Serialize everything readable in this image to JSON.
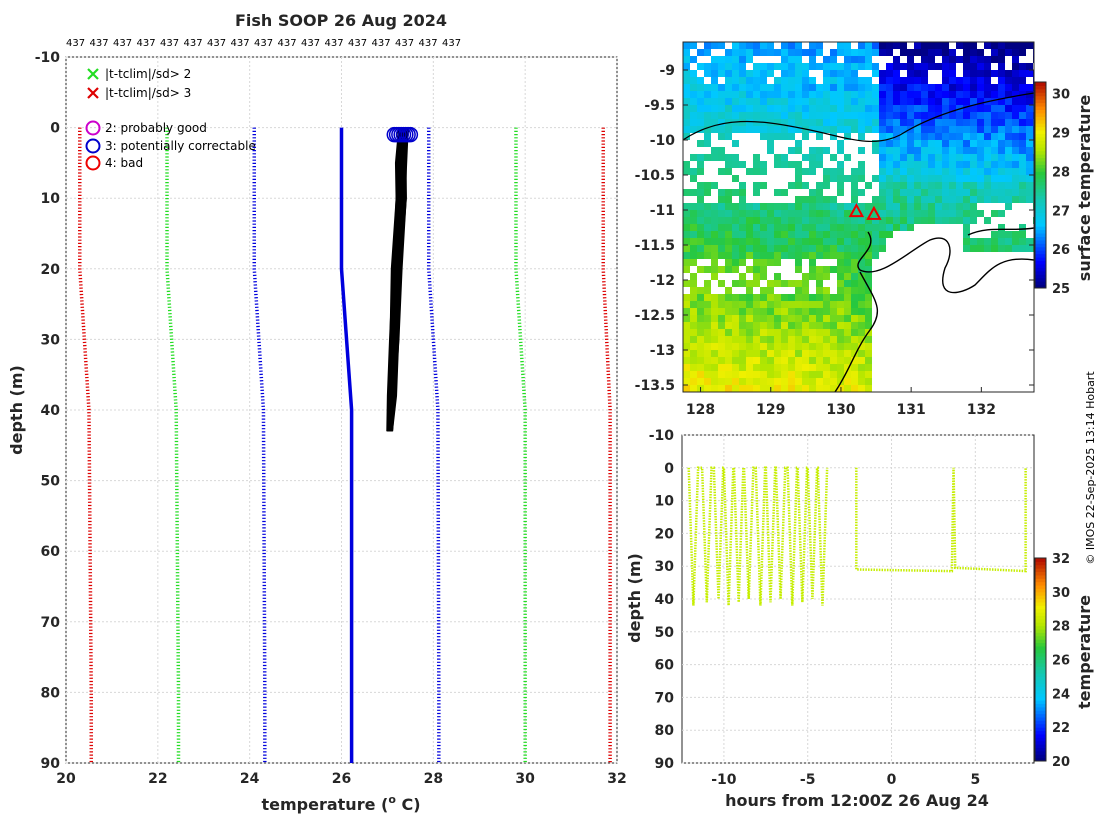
{
  "colors": {
    "clim2": "#22dd22",
    "clim3": "#dd0000",
    "flag2": "#cc00cc",
    "flag3": "#0000cc",
    "flag4": "#ee0000",
    "profile": "#000000",
    "mean": "#0000dd",
    "track": "#c6ee00",
    "coast": "#000000",
    "marker": "#ee0000"
  },
  "copyright": "© IMOS 22-Sep-2025 13:14 Hobart",
  "chart_data": [
    {
      "id": "profile",
      "type": "line",
      "title": "Fish SOOP 26 Aug 2024",
      "top_labels": [
        "437",
        "437",
        "437",
        "437",
        "437",
        "437",
        "437",
        "437",
        "437",
        "437",
        "437",
        "437",
        "437",
        "437",
        "437",
        "437",
        "437"
      ],
      "xlabel": "temperature (°C)",
      "xlabel_parts": [
        "temperature (",
        "o",
        " C)"
      ],
      "ylabel": "depth (m)",
      "xlim": [
        20,
        32
      ],
      "ylim": [
        -10,
        90
      ],
      "xticks": [
        20,
        22,
        24,
        26,
        28,
        30,
        32
      ],
      "yticks": [
        -10,
        0,
        10,
        20,
        30,
        40,
        50,
        60,
        70,
        80,
        90
      ],
      "legend": [
        {
          "marker": "x",
          "colorKey": "clim2",
          "label": "|t-tclim|/sd> 2"
        },
        {
          "marker": "x",
          "colorKey": "clim3",
          "label": "|t-tclim|/sd> 3"
        },
        {
          "marker": "o",
          "colorKey": "flag2",
          "label": "2: probably good"
        },
        {
          "marker": "o",
          "colorKey": "flag3",
          "label": "3: potentially correctable"
        },
        {
          "marker": "o",
          "colorKey": "flag4",
          "label": "4: bad"
        }
      ],
      "series": [
        {
          "name": "clim -3sd",
          "colorKey": "clim3",
          "style": "dotted",
          "depth": [
            0,
            20,
            40,
            80,
            90
          ],
          "temp": [
            20.3,
            20.3,
            20.5,
            20.55,
            20.55
          ]
        },
        {
          "name": "clim -2sd",
          "colorKey": "clim2",
          "style": "dotted",
          "depth": [
            0,
            20,
            40,
            80,
            90
          ],
          "temp": [
            22.2,
            22.2,
            22.4,
            22.45,
            22.45
          ]
        },
        {
          "name": "clim -1sd",
          "colorKey": "mean",
          "style": "dotted",
          "depth": [
            0,
            20,
            40,
            80,
            90
          ],
          "temp": [
            24.1,
            24.1,
            24.3,
            24.33,
            24.33
          ]
        },
        {
          "name": "clim mean",
          "colorKey": "mean",
          "style": "solid",
          "depth": [
            0,
            20,
            40,
            80,
            90
          ],
          "temp": [
            26.0,
            26.0,
            26.22,
            26.22,
            26.22
          ]
        },
        {
          "name": "clim +1sd",
          "colorKey": "mean",
          "style": "dotted",
          "depth": [
            0,
            20,
            40,
            80,
            90
          ],
          "temp": [
            27.9,
            27.9,
            28.1,
            28.12,
            28.12
          ]
        },
        {
          "name": "clim +2sd",
          "colorKey": "clim2",
          "style": "dotted",
          "depth": [
            0,
            20,
            40,
            80,
            90
          ],
          "temp": [
            29.8,
            29.8,
            30.0,
            30.0,
            30.0
          ]
        },
        {
          "name": "clim +3sd",
          "colorKey": "clim3",
          "style": "dotted",
          "depth": [
            0,
            20,
            40,
            80,
            90
          ],
          "temp": [
            31.7,
            31.7,
            31.85,
            31.85,
            31.85
          ]
        }
      ],
      "profiles": {
        "count": 37,
        "surface_temp_range": [
          27.2,
          27.5
        ],
        "points": [
          [
            0,
            27.35
          ],
          [
            5,
            27.3
          ],
          [
            10,
            27.3
          ],
          [
            20,
            27.2
          ],
          [
            30,
            27.15
          ],
          [
            38,
            27.1
          ],
          [
            43,
            27.05
          ]
        ],
        "spread": 0.22
      },
      "flag_circles": {
        "depth": 1,
        "temps": [
          27.15,
          27.2,
          27.25,
          27.3,
          27.35,
          27.4,
          27.45,
          27.5
        ]
      }
    },
    {
      "id": "sst_map",
      "type": "heatmap",
      "ylabel": "",
      "xlim": [
        127.75,
        132.75
      ],
      "ylim": [
        -13.6,
        -8.6
      ],
      "xticks": [
        128,
        129,
        130,
        131,
        132
      ],
      "yticks": [
        -9,
        -9.5,
        -10,
        -10.5,
        -11,
        -11.5,
        -12,
        -12.5,
        -13,
        -13.5
      ],
      "colorbar": {
        "label": "surface temperature",
        "range": [
          25,
          30.3
        ],
        "ticks": [
          25,
          26,
          27,
          28,
          29,
          30
        ]
      },
      "markers": [
        {
          "lon": 130.22,
          "lat": -11.03
        },
        {
          "lon": 130.47,
          "lat": -11.07
        }
      ]
    },
    {
      "id": "depth_time",
      "type": "scatter",
      "xlabel": "hours from 12:00Z 26 Aug 24",
      "ylabel": "depth (m)",
      "xlim": [
        -12.5,
        8.5
      ],
      "ylim": [
        -10,
        90
      ],
      "xticks": [
        -10,
        -5,
        0,
        5
      ],
      "yticks": [
        -10,
        0,
        10,
        20,
        30,
        40,
        50,
        60,
        70,
        80,
        90
      ],
      "colorbar": {
        "label": "temperature",
        "range": [
          20,
          32
        ],
        "ticks": [
          20,
          22,
          24,
          26,
          28,
          30,
          32
        ]
      },
      "casts_start": [
        -12.1,
        -11.3,
        -10.6,
        -10.0,
        -9.4,
        -8.8,
        -8.1,
        -7.5,
        -6.9,
        -6.2,
        -5.6,
        -5.0,
        -4.4
      ],
      "cast_max_depth": 42,
      "tow": {
        "start": -2.1,
        "end": 8.0,
        "depth": 31
      },
      "vertical_casts": [
        3.7,
        8.0
      ]
    }
  ]
}
